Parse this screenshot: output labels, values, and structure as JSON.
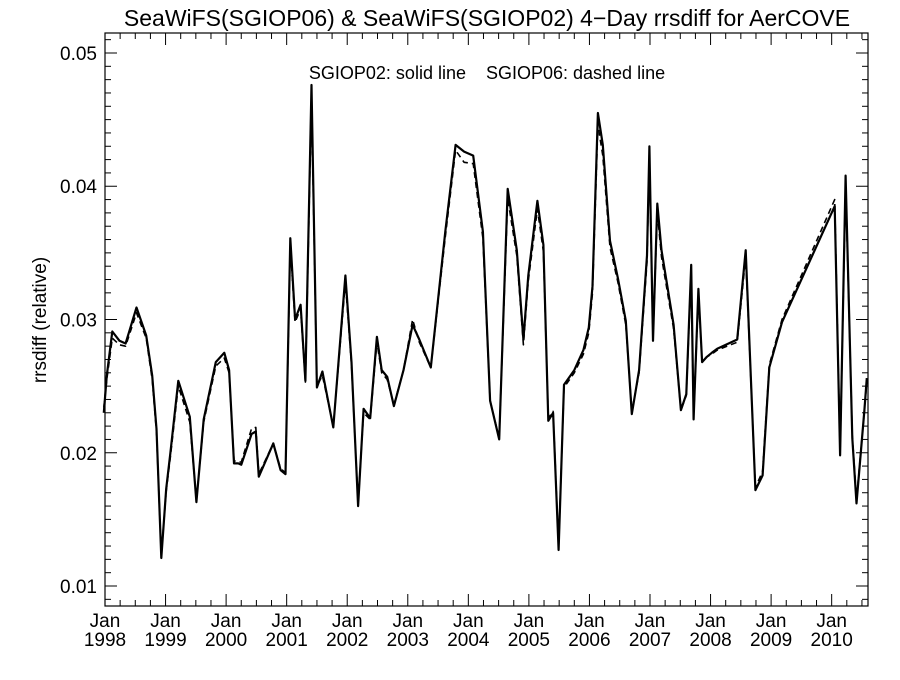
{
  "chart_data": {
    "type": "line",
    "title": "SeaWiFS(SGIOP06) & SeaWiFS(SGIOP02) 4−Day rrsdiff for AerCOVE",
    "annotation": "SGIOP02: solid line    SGIOP06: dashed line",
    "xlabel": "",
    "ylabel": "rrsdiff (relative)",
    "xlim": [
      1998.0,
      2010.6
    ],
    "ylim": [
      0.0085,
      0.0515
    ],
    "y_ticks": [
      0.01,
      0.02,
      0.03,
      0.04,
      0.05
    ],
    "y_tick_labels": [
      "0.01",
      "0.02",
      "0.03",
      "0.04",
      "0.05"
    ],
    "x_ticks": [
      1998,
      1999,
      2000,
      2001,
      2002,
      2003,
      2004,
      2005,
      2006,
      2007,
      2008,
      2009,
      2010
    ],
    "x_tick_labels": [
      [
        "Jan",
        "1998"
      ],
      [
        "Jan",
        "1999"
      ],
      [
        "Jan",
        "2000"
      ],
      [
        "Jan",
        "2001"
      ],
      [
        "Jan",
        "2002"
      ],
      [
        "Jan",
        "2003"
      ],
      [
        "Jan",
        "2004"
      ],
      [
        "Jan",
        "2005"
      ],
      [
        "Jan",
        "2006"
      ],
      [
        "Jan",
        "2007"
      ],
      [
        "Jan",
        "2008"
      ],
      [
        "Jan",
        "2009"
      ],
      [
        "Jan",
        "2010"
      ]
    ],
    "grid": false,
    "series": [
      {
        "name": "SGIOP02",
        "style": "solid",
        "color": "#000000",
        "x": [
          1997.98,
          1998.03,
          1998.12,
          1998.24,
          1998.34,
          1998.52,
          1998.68,
          1998.78,
          1998.85,
          1998.93,
          1999.01,
          1999.08,
          1999.21,
          1999.4,
          1999.51,
          1999.63,
          1999.83,
          1999.97,
          2000.05,
          2000.13,
          2000.2,
          2000.25,
          2000.42,
          2000.49,
          2000.54,
          2000.78,
          2000.9,
          2000.98,
          2001.06,
          2001.14,
          2001.23,
          2001.31,
          2001.41,
          2001.5,
          2001.59,
          2001.77,
          2001.97,
          2002.07,
          2002.18,
          2002.27,
          2002.38,
          2002.49,
          2002.57,
          2002.66,
          2002.77,
          2002.93,
          2003.08,
          2003.19,
          2003.38,
          2003.62,
          2003.79,
          2003.93,
          2004.08,
          2004.24,
          2004.36,
          2004.51,
          2004.65,
          2004.8,
          2004.91,
          2004.99,
          2005.14,
          2005.24,
          2005.32,
          2005.4,
          2005.49,
          2005.58,
          2005.75,
          2005.9,
          2005.99,
          2006.05,
          2006.14,
          2006.22,
          2006.34,
          2006.47,
          2006.6,
          2006.7,
          2006.82,
          2006.95,
          2006.99,
          2007.05,
          2007.12,
          2007.19,
          2007.39,
          2007.51,
          2007.6,
          2007.68,
          2007.72,
          2007.8,
          2007.86,
          2007.94,
          2008.02,
          2008.11,
          2008.44,
          2008.58,
          2008.74,
          2008.86,
          2008.97,
          2009.18,
          2010.05,
          2010.14,
          2010.23,
          2010.34,
          2010.41,
          2010.54,
          2010.58
        ],
        "y": [
          0.023,
          0.0258,
          0.0291,
          0.0284,
          0.0282,
          0.0309,
          0.0288,
          0.0258,
          0.0218,
          0.0121,
          0.0173,
          0.02,
          0.0254,
          0.0227,
          0.0163,
          0.0225,
          0.0268,
          0.0275,
          0.0262,
          0.0192,
          0.0192,
          0.0191,
          0.0214,
          0.0216,
          0.0182,
          0.0207,
          0.0187,
          0.0184,
          0.0361,
          0.03,
          0.0311,
          0.0254,
          0.0476,
          0.0249,
          0.0261,
          0.0219,
          0.0333,
          0.0268,
          0.016,
          0.0233,
          0.0226,
          0.0287,
          0.0262,
          0.0257,
          0.0235,
          0.0262,
          0.0296,
          0.0285,
          0.0264,
          0.0366,
          0.0431,
          0.0426,
          0.0423,
          0.0366,
          0.0239,
          0.021,
          0.0398,
          0.0352,
          0.0285,
          0.0333,
          0.0389,
          0.0356,
          0.0224,
          0.023,
          0.0127,
          0.0251,
          0.0262,
          0.0277,
          0.0294,
          0.0325,
          0.0455,
          0.0431,
          0.0359,
          0.0331,
          0.0299,
          0.0229,
          0.0262,
          0.0348,
          0.043,
          0.0284,
          0.0387,
          0.0352,
          0.0296,
          0.0232,
          0.0244,
          0.0341,
          0.0225,
          0.0323,
          0.0268,
          0.0272,
          0.0275,
          0.0278,
          0.0285,
          0.0352,
          0.0172,
          0.0183,
          0.0264,
          0.0298,
          0.0385,
          0.0198,
          0.0408,
          0.0211,
          0.0162,
          0.0232,
          0.0256
        ]
      },
      {
        "name": "SGIOP06",
        "style": "dashed",
        "color": "#000000",
        "x": [
          1997.98,
          1998.03,
          1998.12,
          1998.24,
          1998.34,
          1998.52,
          1998.68,
          1998.78,
          1998.85,
          1998.93,
          1999.01,
          1999.08,
          1999.21,
          1999.4,
          1999.51,
          1999.63,
          1999.83,
          1999.97,
          2000.05,
          2000.13,
          2000.2,
          2000.25,
          2000.42,
          2000.49,
          2000.54,
          2000.78,
          2000.9,
          2000.98,
          2001.06,
          2001.14,
          2001.23,
          2001.31,
          2001.41,
          2001.5,
          2001.59,
          2001.77,
          2001.97,
          2002.07,
          2002.18,
          2002.27,
          2002.38,
          2002.49,
          2002.57,
          2002.66,
          2002.77,
          2002.93,
          2003.08,
          2003.19,
          2003.38,
          2003.62,
          2003.79,
          2003.93,
          2004.08,
          2004.24,
          2004.36,
          2004.51,
          2004.65,
          2004.8,
          2004.91,
          2004.99,
          2005.14,
          2005.24,
          2005.32,
          2005.4,
          2005.49,
          2005.58,
          2005.75,
          2005.9,
          2005.99,
          2006.05,
          2006.14,
          2006.22,
          2006.34,
          2006.47,
          2006.6,
          2006.7,
          2006.82,
          2006.95,
          2006.99,
          2007.05,
          2007.12,
          2007.19,
          2007.39,
          2007.51,
          2007.6,
          2007.68,
          2007.72,
          2007.8,
          2007.86,
          2007.94,
          2008.02,
          2008.11,
          2008.44,
          2008.58,
          2008.74,
          2008.86,
          2008.97,
          2009.18,
          2010.05,
          2010.14,
          2010.23,
          2010.34,
          2010.41,
          2010.54,
          2010.58
        ],
        "y": [
          0.0234,
          0.0255,
          0.0286,
          0.0281,
          0.028,
          0.0305,
          0.0286,
          0.0255,
          0.0215,
          0.0123,
          0.0171,
          0.0197,
          0.025,
          0.0223,
          0.0164,
          0.0223,
          0.0265,
          0.0271,
          0.026,
          0.0194,
          0.0193,
          0.0193,
          0.0218,
          0.0219,
          0.0184,
          0.0207,
          0.0188,
          0.0185,
          0.0355,
          0.0298,
          0.0308,
          0.0253,
          0.0466,
          0.025,
          0.0258,
          0.022,
          0.0328,
          0.0266,
          0.0162,
          0.023,
          0.0225,
          0.0283,
          0.026,
          0.0255,
          0.0236,
          0.0262,
          0.03,
          0.0283,
          0.0264,
          0.0362,
          0.0427,
          0.0418,
          0.0417,
          0.0361,
          0.0239,
          0.0211,
          0.0391,
          0.0348,
          0.0281,
          0.0329,
          0.0383,
          0.0351,
          0.0226,
          0.0231,
          0.0129,
          0.0249,
          0.026,
          0.0274,
          0.029,
          0.032,
          0.0446,
          0.0423,
          0.0354,
          0.0328,
          0.0296,
          0.0231,
          0.026,
          0.0343,
          0.0422,
          0.0286,
          0.0381,
          0.0347,
          0.0293,
          0.0232,
          0.0243,
          0.0336,
          0.0226,
          0.0319,
          0.0268,
          0.0272,
          0.0274,
          0.0277,
          0.0283,
          0.0347,
          0.0174,
          0.0186,
          0.0266,
          0.03,
          0.039,
          0.02,
          0.0402,
          0.0213,
          0.0165,
          0.0231,
          0.0254
        ]
      }
    ]
  }
}
